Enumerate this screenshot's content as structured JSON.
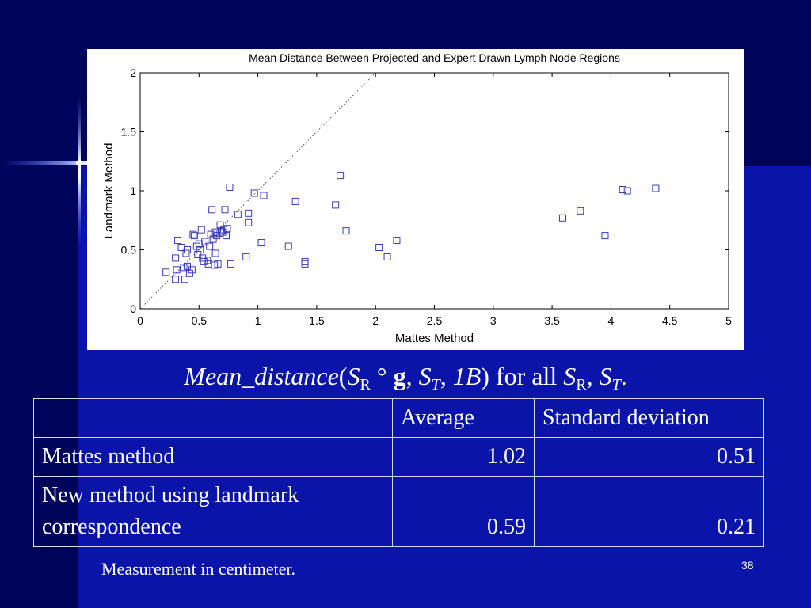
{
  "slide": {
    "caption": {
      "func": "Mean_distance",
      "open": "(",
      "s": "S",
      "sub_r": "R",
      "circ": " ° ",
      "g": "g",
      "comma1": ", ",
      "sub_t": "T",
      "comma2": ", ",
      "onebee": "1B",
      "close": ")",
      "for_all": " for all ",
      "comma3": ", ",
      "period": "."
    },
    "table": {
      "headers": [
        "",
        "Average",
        "Standard deviation"
      ],
      "rows": [
        {
          "method": "Mattes method",
          "average": "1.02",
          "std": "0.51"
        },
        {
          "method": "New method using landmark correspondence",
          "average": "0.59",
          "std": "0.21"
        }
      ]
    },
    "footnote": "Measurement in centimeter.",
    "page_number": "38",
    "colors": {
      "background_dark": "#00035a",
      "background_main": "#0a14a8",
      "marker": "#3a3ab8"
    }
  },
  "chart_data": {
    "type": "scatter",
    "title": "Mean Distance Between Projected and Expert Drawn Lymph Node Regions",
    "xlabel": "Mattes Method",
    "ylabel": "Landmark Method",
    "xlim": [
      0,
      5
    ],
    "ylim": [
      0,
      2
    ],
    "xticks": [
      "0",
      "0.5",
      "1",
      "1.5",
      "2",
      "2.5",
      "3",
      "3.5",
      "4",
      "4.5",
      "5"
    ],
    "yticks": [
      "0",
      "0.5",
      "1",
      "1.5",
      "2"
    ],
    "reference_line": "y = x (dotted)",
    "grid": false,
    "marker": "square",
    "points": [
      [
        0.22,
        0.31
      ],
      [
        0.3,
        0.25
      ],
      [
        0.31,
        0.33
      ],
      [
        0.3,
        0.43
      ],
      [
        0.32,
        0.58
      ],
      [
        0.35,
        0.52
      ],
      [
        0.37,
        0.35
      ],
      [
        0.38,
        0.25
      ],
      [
        0.39,
        0.47
      ],
      [
        0.4,
        0.5
      ],
      [
        0.4,
        0.36
      ],
      [
        0.42,
        0.3
      ],
      [
        0.44,
        0.33
      ],
      [
        0.45,
        0.63
      ],
      [
        0.46,
        0.62
      ],
      [
        0.48,
        0.53
      ],
      [
        0.49,
        0.46
      ],
      [
        0.5,
        0.55
      ],
      [
        0.51,
        0.5
      ],
      [
        0.52,
        0.67
      ],
      [
        0.53,
        0.43
      ],
      [
        0.54,
        0.4
      ],
      [
        0.55,
        0.57
      ],
      [
        0.57,
        0.41
      ],
      [
        0.58,
        0.38
      ],
      [
        0.59,
        0.53
      ],
      [
        0.6,
        0.63
      ],
      [
        0.61,
        0.84
      ],
      [
        0.62,
        0.59
      ],
      [
        0.63,
        0.37
      ],
      [
        0.64,
        0.47
      ],
      [
        0.64,
        0.65
      ],
      [
        0.65,
        0.62
      ],
      [
        0.66,
        0.38
      ],
      [
        0.68,
        0.64
      ],
      [
        0.68,
        0.71
      ],
      [
        0.69,
        0.66
      ],
      [
        0.7,
        0.65
      ],
      [
        0.71,
        0.67
      ],
      [
        0.72,
        0.84
      ],
      [
        0.73,
        0.62
      ],
      [
        0.74,
        0.68
      ],
      [
        0.76,
        1.03
      ],
      [
        0.77,
        0.38
      ],
      [
        0.83,
        0.8
      ],
      [
        0.9,
        0.44
      ],
      [
        0.92,
        0.81
      ],
      [
        0.92,
        0.73
      ],
      [
        0.97,
        0.98
      ],
      [
        1.03,
        0.56
      ],
      [
        1.05,
        0.96
      ],
      [
        1.26,
        0.53
      ],
      [
        1.32,
        0.91
      ],
      [
        1.4,
        0.4
      ],
      [
        1.4,
        0.38
      ],
      [
        1.66,
        0.88
      ],
      [
        1.7,
        1.13
      ],
      [
        1.75,
        0.66
      ],
      [
        2.03,
        0.52
      ],
      [
        2.1,
        0.44
      ],
      [
        2.18,
        0.58
      ],
      [
        3.59,
        0.77
      ],
      [
        3.74,
        0.83
      ],
      [
        3.95,
        0.62
      ],
      [
        4.1,
        1.01
      ],
      [
        4.14,
        1.0
      ],
      [
        4.38,
        1.02
      ]
    ]
  }
}
